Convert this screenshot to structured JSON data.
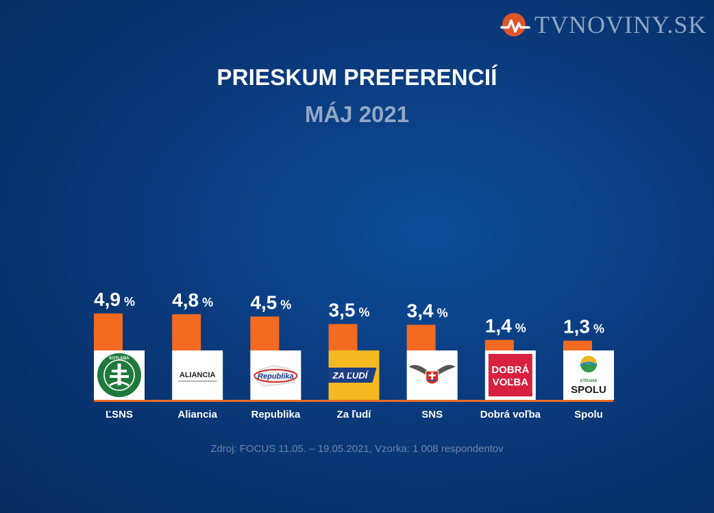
{
  "brand": {
    "name": "TVNOVINY.SK",
    "logo_icon": "tvnoviny-logo"
  },
  "header": {
    "title": "PRIESKUM PREFERENCIÍ",
    "subtitle": "MÁJ 2021"
  },
  "colors": {
    "bar": "#f26b21",
    "label": "#ffffff",
    "baseline": "#f26b21",
    "source": "#6b86aa"
  },
  "chart_data": {
    "type": "bar",
    "title": "PRIESKUM PREFERENCIÍ",
    "subtitle": "MÁJ 2021",
    "categories": [
      "ĽSNS",
      "Aliancia",
      "Republika",
      "Za ľudí",
      "SNS",
      "Dobrá voľba",
      "Spolu"
    ],
    "values": [
      4.9,
      4.8,
      4.5,
      3.5,
      3.4,
      1.4,
      1.3
    ],
    "value_labels": [
      "4,9",
      "4,8",
      "4,5",
      "3,5",
      "3,4",
      "1,4",
      "1,3"
    ],
    "unit": "%",
    "logos": [
      {
        "icon": "kotleba-lsns-logo",
        "text": "KOTLEBA"
      },
      {
        "icon": "aliancia-logo",
        "text": "ALIANCIA"
      },
      {
        "icon": "republika-logo",
        "text": "Republika"
      },
      {
        "icon": "za-ludi-logo",
        "text": "ZA ĽUDÍ"
      },
      {
        "icon": "sns-logo",
        "text": ""
      },
      {
        "icon": "dobra-volba-logo",
        "text": [
          "DOBRÁ",
          "VOĽBA"
        ]
      },
      {
        "icon": "spolu-logo",
        "text": [
          "STRANA",
          "SPOLU"
        ]
      }
    ],
    "ylim": [
      0,
      6
    ],
    "grid": false,
    "legend": "none"
  },
  "source": "Zdroj: FOCUS 11.05. – 19.05.2021, Vzorka: 1 008 respondentov"
}
